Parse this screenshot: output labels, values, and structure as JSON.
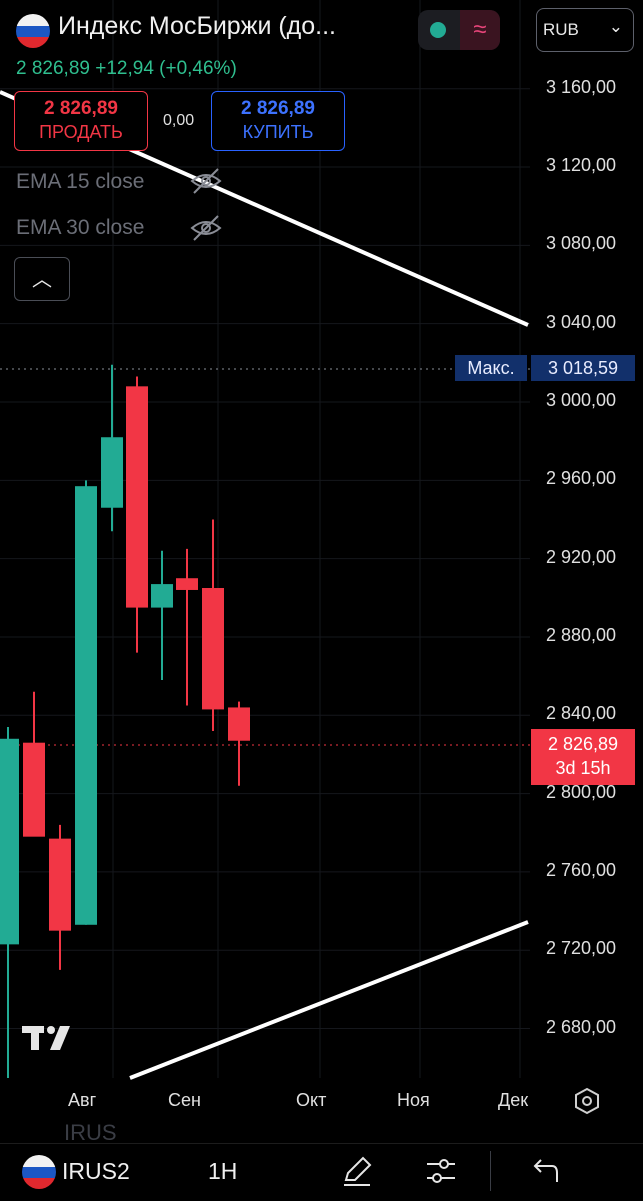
{
  "header": {
    "title": "Индекс МосБиржи (до...",
    "currency": "RUB",
    "quote": "2 826,89  +12,94 (+0,46%)",
    "status_icon": "market-dot-icon",
    "wave_icon": "≈"
  },
  "trade": {
    "sell_price": "2 826,89",
    "sell_label": "ПРОДАТЬ",
    "spread": "0,00",
    "buy_price": "2 826,89",
    "buy_label": "КУПИТЬ"
  },
  "indicators": [
    {
      "label": "EMA 15 close",
      "visible": false
    },
    {
      "label": "EMA 30 close",
      "visible": false
    }
  ],
  "price_axis": {
    "max_label": "Макс.",
    "max_value": "3 018,59",
    "last_price": "2 826,89",
    "countdown": "3d 15h",
    "ticks": [
      "3 160,00",
      "3 120,00",
      "3 080,00",
      "3 040,00",
      "3 000,00",
      "2 960,00",
      "2 920,00",
      "2 880,00",
      "2 840,00",
      "2 800,00",
      "2 760,00",
      "2 720,00",
      "2 680,00"
    ]
  },
  "time_axis": {
    "ticks": [
      "Авг",
      "Сен",
      "Окт",
      "Ноя",
      "Дек"
    ]
  },
  "chart_data": {
    "type": "candlestick",
    "ylim": [
      2660,
      3180
    ],
    "up_color": "#22ab94",
    "down_color": "#f23645",
    "candles": [
      {
        "open": 2723,
        "high": 2834,
        "low": 2650,
        "close": 2828
      },
      {
        "open": 2826,
        "high": 2852,
        "low": 2780,
        "close": 2778
      },
      {
        "open": 2777,
        "high": 2784,
        "low": 2710,
        "close": 2730
      },
      {
        "open": 2733,
        "high": 2960,
        "low": 2733,
        "close": 2957
      },
      {
        "open": 2946,
        "high": 3019,
        "low": 2934,
        "close": 2982
      },
      {
        "open": 3008,
        "high": 3013,
        "low": 2872,
        "close": 2895
      },
      {
        "open": 2895,
        "high": 2924,
        "low": 2858,
        "close": 2907
      },
      {
        "open": 2910,
        "high": 2925,
        "low": 2845,
        "close": 2904
      },
      {
        "open": 2905,
        "high": 2940,
        "low": 2832,
        "close": 2843
      },
      {
        "open": 2844,
        "high": 2847,
        "low": 2804,
        "close": 2827
      }
    ],
    "trendlines": [
      {
        "from": {
          "x": "start",
          "y": 3194
        },
        "to": {
          "x": "mid",
          "y": 3040
        }
      },
      {
        "from": {
          "x": "Авг",
          "y": 2680
        },
        "to": {
          "x": "end",
          "y": 2734
        }
      }
    ],
    "max_price": 3018.59,
    "last_price": 2826.89
  },
  "bottom_bar": {
    "symbol": "IRUS2",
    "ghost_symbol": "IRUS",
    "timeframe": "1H"
  },
  "colors": {
    "up": "#22ab94",
    "down": "#f23645",
    "buy": "#2962ff",
    "max_badge": "#12306b"
  }
}
